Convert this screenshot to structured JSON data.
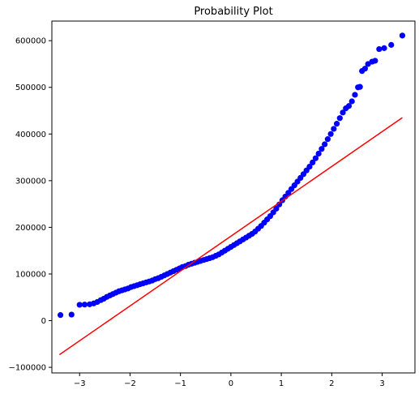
{
  "chart_data": {
    "type": "scatter",
    "title": "Probability Plot",
    "xlabel": "",
    "ylabel": "",
    "xlim": [
      -3.55,
      3.65
    ],
    "ylim": [
      -112000,
      642000
    ],
    "xticks": [
      -3,
      -2,
      -1,
      0,
      1,
      2,
      3
    ],
    "xtick_labels": [
      "−3",
      "−2",
      "−1",
      "0",
      "1",
      "2",
      "3"
    ],
    "yticks": [
      -100000,
      0,
      100000,
      200000,
      300000,
      400000,
      500000,
      600000
    ],
    "ytick_labels": [
      "−100000",
      "0",
      "100000",
      "200000",
      "300000",
      "400000",
      "500000",
      "600000"
    ],
    "grid": false,
    "series": [
      {
        "kind": "points",
        "color": "#0000ff",
        "points": [
          [
            -3.38,
            12000
          ],
          [
            -3.16,
            13000
          ],
          [
            -3.0,
            34000
          ],
          [
            -2.9,
            34500
          ],
          [
            -2.8,
            35000
          ],
          [
            -2.72,
            37000
          ],
          [
            -2.65,
            40000
          ],
          [
            -2.58,
            44000
          ],
          [
            -2.52,
            47000
          ],
          [
            -2.46,
            51000
          ],
          [
            -2.4,
            54000
          ],
          [
            -2.34,
            57000
          ],
          [
            -2.28,
            60000
          ],
          [
            -2.22,
            63000
          ],
          [
            -2.16,
            65000
          ],
          [
            -2.1,
            67000
          ],
          [
            -2.04,
            69000
          ],
          [
            -1.98,
            72000
          ],
          [
            -1.92,
            74000
          ],
          [
            -1.86,
            76000
          ],
          [
            -1.8,
            78000
          ],
          [
            -1.74,
            80000
          ],
          [
            -1.68,
            82000
          ],
          [
            -1.62,
            84000
          ],
          [
            -1.56,
            86000
          ],
          [
            -1.5,
            89000
          ],
          [
            -1.44,
            91000
          ],
          [
            -1.38,
            94000
          ],
          [
            -1.32,
            97000
          ],
          [
            -1.26,
            100000
          ],
          [
            -1.2,
            103000
          ],
          [
            -1.14,
            106000
          ],
          [
            -1.08,
            109000
          ],
          [
            -1.02,
            112000
          ],
          [
            -0.96,
            115000
          ],
          [
            -0.9,
            117000
          ],
          [
            -0.84,
            120000
          ],
          [
            -0.78,
            122000
          ],
          [
            -0.72,
            124000
          ],
          [
            -0.66,
            126000
          ],
          [
            -0.6,
            128000
          ],
          [
            -0.54,
            130000
          ],
          [
            -0.48,
            132000
          ],
          [
            -0.42,
            134000
          ],
          [
            -0.36,
            136000
          ],
          [
            -0.3,
            139000
          ],
          [
            -0.24,
            142000
          ],
          [
            -0.18,
            146000
          ],
          [
            -0.12,
            150000
          ],
          [
            -0.06,
            154000
          ],
          [
            0.0,
            158000
          ],
          [
            0.06,
            162000
          ],
          [
            0.12,
            166000
          ],
          [
            0.18,
            170000
          ],
          [
            0.24,
            174000
          ],
          [
            0.3,
            178000
          ],
          [
            0.36,
            182000
          ],
          [
            0.42,
            186000
          ],
          [
            0.48,
            191000
          ],
          [
            0.54,
            197000
          ],
          [
            0.6,
            203000
          ],
          [
            0.66,
            210000
          ],
          [
            0.72,
            217000
          ],
          [
            0.78,
            224000
          ],
          [
            0.84,
            232000
          ],
          [
            0.9,
            240000
          ],
          [
            0.96,
            249000
          ],
          [
            1.02,
            258000
          ],
          [
            1.08,
            266000
          ],
          [
            1.14,
            274000
          ],
          [
            1.2,
            282000
          ],
          [
            1.26,
            290000
          ],
          [
            1.32,
            298000
          ],
          [
            1.38,
            306000
          ],
          [
            1.44,
            314000
          ],
          [
            1.5,
            322000
          ],
          [
            1.56,
            330000
          ],
          [
            1.62,
            339000
          ],
          [
            1.68,
            348000
          ],
          [
            1.74,
            358000
          ],
          [
            1.8,
            368000
          ],
          [
            1.86,
            378000
          ],
          [
            1.92,
            389000
          ],
          [
            1.98,
            400000
          ],
          [
            2.04,
            411000
          ],
          [
            2.1,
            422000
          ],
          [
            2.16,
            434000
          ],
          [
            2.22,
            446000
          ],
          [
            2.28,
            455000
          ],
          [
            2.34,
            460000
          ],
          [
            2.4,
            470000
          ],
          [
            2.46,
            484000
          ],
          [
            2.52,
            500000
          ],
          [
            2.56,
            501000
          ],
          [
            2.6,
            535000
          ],
          [
            2.66,
            540000
          ],
          [
            2.72,
            550000
          ],
          [
            2.8,
            555000
          ],
          [
            2.86,
            557000
          ],
          [
            2.94,
            582000
          ],
          [
            3.04,
            584000
          ],
          [
            3.18,
            591000
          ],
          [
            3.4,
            611000
          ]
        ]
      },
      {
        "kind": "line",
        "color": "#ff0000",
        "x": [
          -3.4,
          3.4
        ],
        "y": [
          -73000,
          435000
        ]
      }
    ]
  }
}
